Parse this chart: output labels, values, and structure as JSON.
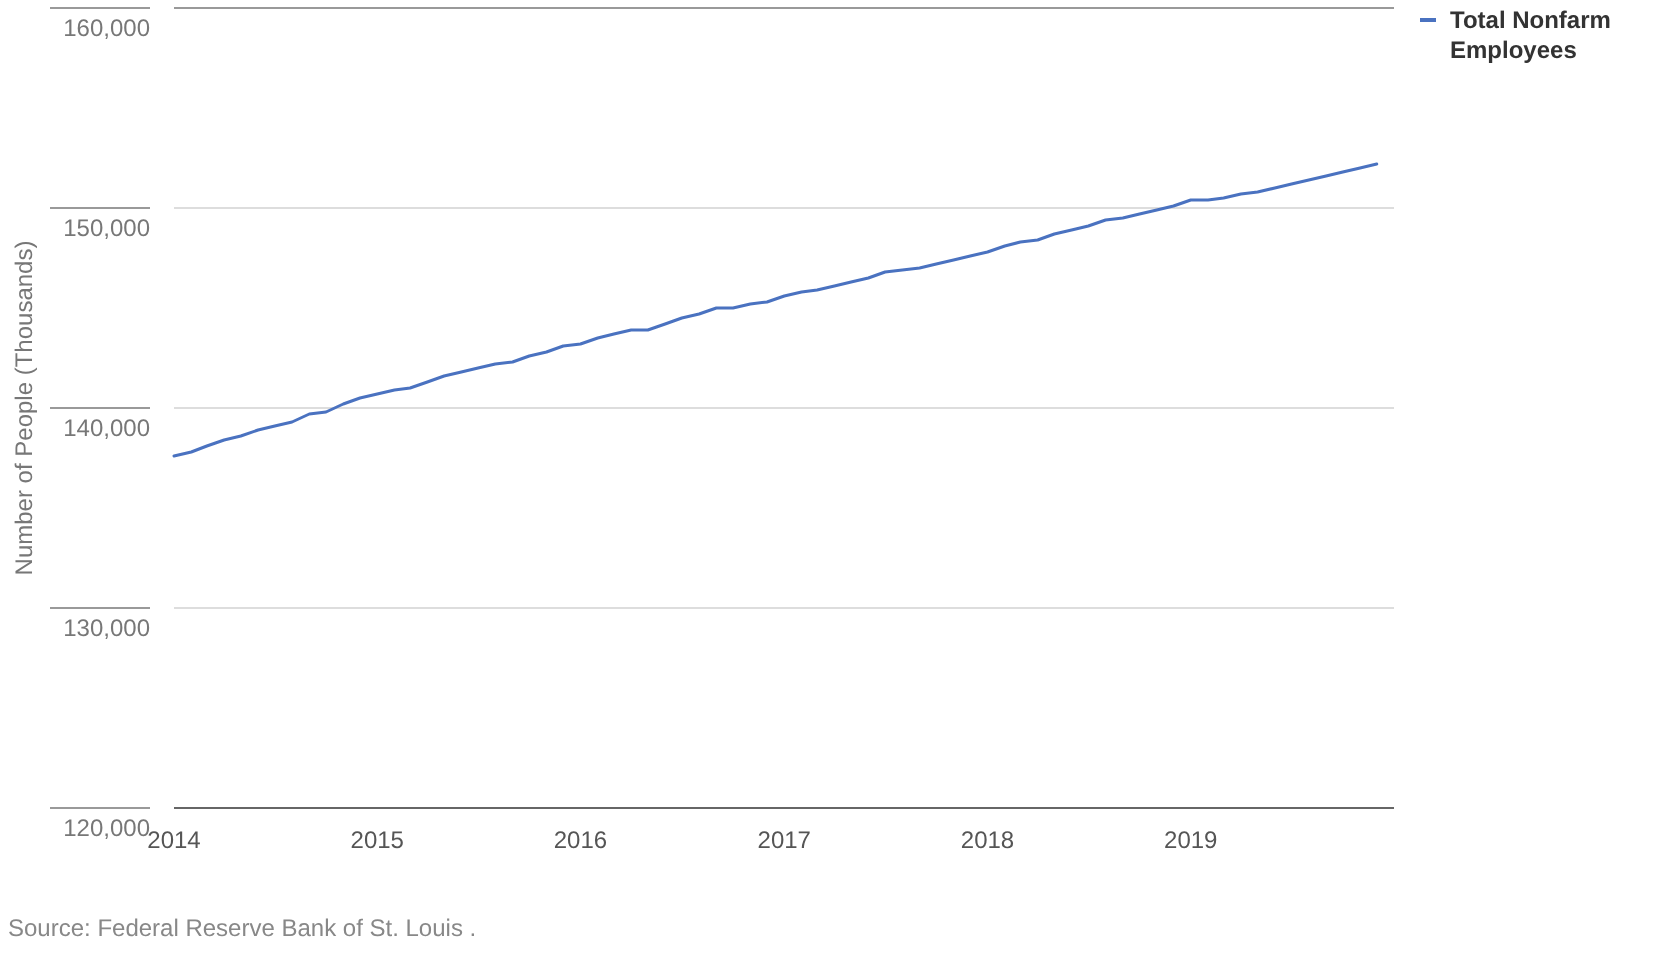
{
  "chart_data": {
    "type": "line",
    "ylabel": "Number of People (Thousands)",
    "annotations": [
      "Source: Federal Reserve Bank of St. Louis ."
    ],
    "x": [
      "2014-01",
      "2014-02",
      "2014-03",
      "2014-04",
      "2014-05",
      "2014-06",
      "2014-07",
      "2014-08",
      "2014-09",
      "2014-10",
      "2014-11",
      "2014-12",
      "2015-01",
      "2015-02",
      "2015-03",
      "2015-04",
      "2015-05",
      "2015-06",
      "2015-07",
      "2015-08",
      "2015-09",
      "2015-10",
      "2015-11",
      "2015-12",
      "2016-01",
      "2016-02",
      "2016-03",
      "2016-04",
      "2016-05",
      "2016-06",
      "2016-07",
      "2016-08",
      "2016-09",
      "2016-10",
      "2016-11",
      "2016-12",
      "2017-01",
      "2017-02",
      "2017-03",
      "2017-04",
      "2017-05",
      "2017-06",
      "2017-07",
      "2017-08",
      "2017-09",
      "2017-10",
      "2017-11",
      "2017-12",
      "2018-01",
      "2018-02",
      "2018-03",
      "2018-04",
      "2018-05",
      "2018-06",
      "2018-07",
      "2018-08",
      "2018-09",
      "2018-10",
      "2018-11",
      "2018-12",
      "2019-01",
      "2019-02",
      "2019-03",
      "2019-04",
      "2019-05",
      "2019-06",
      "2019-07",
      "2019-08",
      "2019-09",
      "2019-10",
      "2019-11",
      "2019-12"
    ],
    "series": [
      {
        "name": "Total Nonfarm Employees",
        "color": "#4a72c0",
        "values": [
          137600,
          137800,
          138100,
          138400,
          138600,
          138900,
          139100,
          139300,
          139700,
          139800,
          140200,
          140500,
          140700,
          140900,
          141000,
          141300,
          141600,
          141800,
          142000,
          142200,
          142300,
          142600,
          142800,
          143100,
          143200,
          143500,
          143700,
          143900,
          143900,
          144200,
          144500,
          144700,
          145000,
          145000,
          145200,
          145300,
          145600,
          145800,
          145900,
          146100,
          146300,
          146500,
          146800,
          146900,
          147000,
          147200,
          147400,
          147600,
          147800,
          148100,
          148300,
          148400,
          148700,
          148900,
          149100,
          149400,
          149500,
          149700,
          149900,
          150100,
          150400,
          150400,
          150500,
          150700,
          150800,
          151000,
          151200,
          151400,
          151600,
          151800,
          152000,
          152200
        ]
      }
    ],
    "xlim": [
      "2014-01",
      "2020-01"
    ],
    "xticks": [
      "2014",
      "2015",
      "2016",
      "2017",
      "2018",
      "2019"
    ],
    "ylim": [
      120000,
      160000
    ],
    "yticks": [
      {
        "value": 120000,
        "label": "120,000"
      },
      {
        "value": 130000,
        "label": "130,000"
      },
      {
        "value": 140000,
        "label": "140,000"
      },
      {
        "value": 150000,
        "label": "150,000"
      },
      {
        "value": 160000,
        "label": "160,000"
      }
    ],
    "grid": "y",
    "legend": "top right",
    "line_style": "solid",
    "marker": "none"
  }
}
